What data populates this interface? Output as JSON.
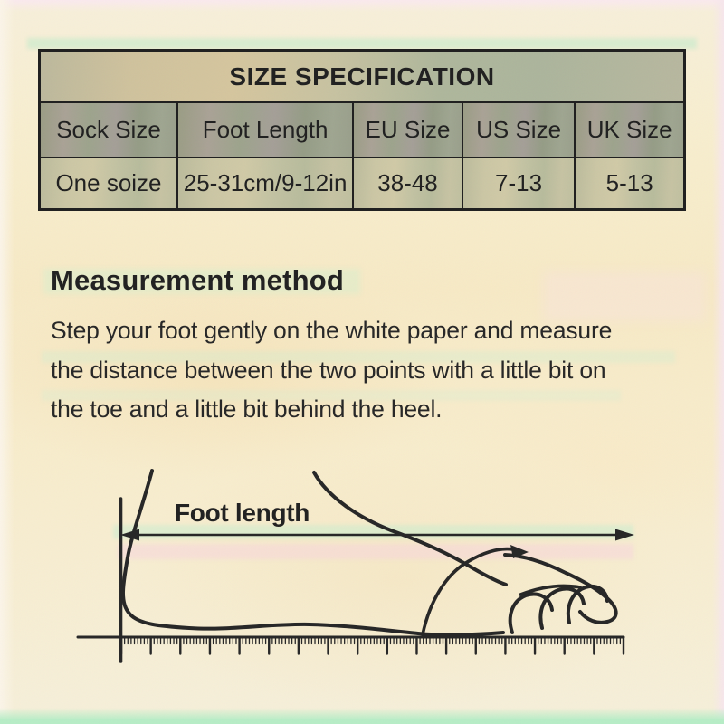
{
  "size_table": {
    "title": "SIZE SPECIFICATION",
    "columns": [
      "Sock Size",
      "Foot Length",
      "EU Size",
      "US Size",
      "UK Size"
    ],
    "row": [
      "One soize",
      "25-31cm/9-12in",
      "38-48",
      "7-13",
      "5-13"
    ]
  },
  "measurement": {
    "heading": "Measurement method",
    "line1": "Step your foot gently on the white paper and measure",
    "line2": "the distance between the two points with a little bit on",
    "line3": "the toe and a little bit behind the heel."
  },
  "diagram": {
    "foot_length_label": "Foot length"
  },
  "colors": {
    "ink": "#141414",
    "table_border": "#121212",
    "background_cream": "#f7edcd",
    "mint_band": "#b4edc4",
    "pink_band": "#f8cde1"
  }
}
